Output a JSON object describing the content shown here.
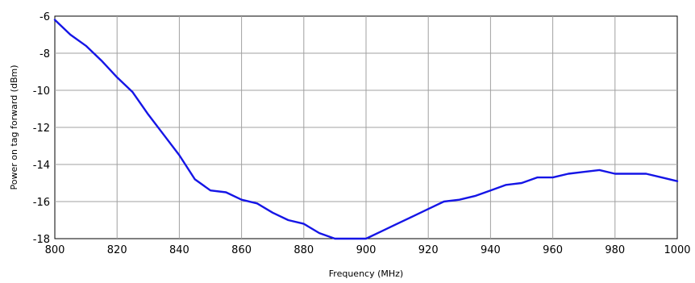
{
  "chart_data": {
    "type": "line",
    "title": "",
    "xlabel": "Frequency (MHz)",
    "ylabel": "Power on tag forward (dBm)",
    "xlim": [
      800,
      1000
    ],
    "ylim": [
      -18,
      -6
    ],
    "xticks": [
      800,
      820,
      840,
      860,
      880,
      900,
      920,
      940,
      960,
      980,
      1000
    ],
    "yticks": [
      -18,
      -16,
      -14,
      -12,
      -10,
      -8,
      -6
    ],
    "grid": true,
    "legend": "none",
    "series": [
      {
        "color": "#1515e6",
        "x": [
          800,
          805,
          810,
          815,
          820,
          825,
          830,
          835,
          840,
          845,
          850,
          855,
          860,
          865,
          870,
          875,
          880,
          885,
          890,
          895,
          900,
          905,
          910,
          915,
          920,
          925,
          930,
          935,
          940,
          945,
          950,
          955,
          960,
          965,
          970,
          975,
          980,
          985,
          990,
          995,
          1000
        ],
        "y": [
          -6.2,
          -7.0,
          -7.6,
          -8.4,
          -9.3,
          -10.1,
          -11.3,
          -12.4,
          -13.5,
          -14.8,
          -15.4,
          -15.5,
          -15.9,
          -16.1,
          -16.6,
          -17.0,
          -17.2,
          -17.7,
          -18.0,
          -18.0,
          -18.0,
          -17.6,
          -17.2,
          -16.8,
          -16.4,
          -16.0,
          -15.9,
          -15.7,
          -15.4,
          -15.1,
          -15.0,
          -14.7,
          -14.7,
          -14.5,
          -14.4,
          -14.3,
          -14.5,
          -14.5,
          -14.5,
          -14.7,
          -14.9
        ]
      }
    ]
  }
}
